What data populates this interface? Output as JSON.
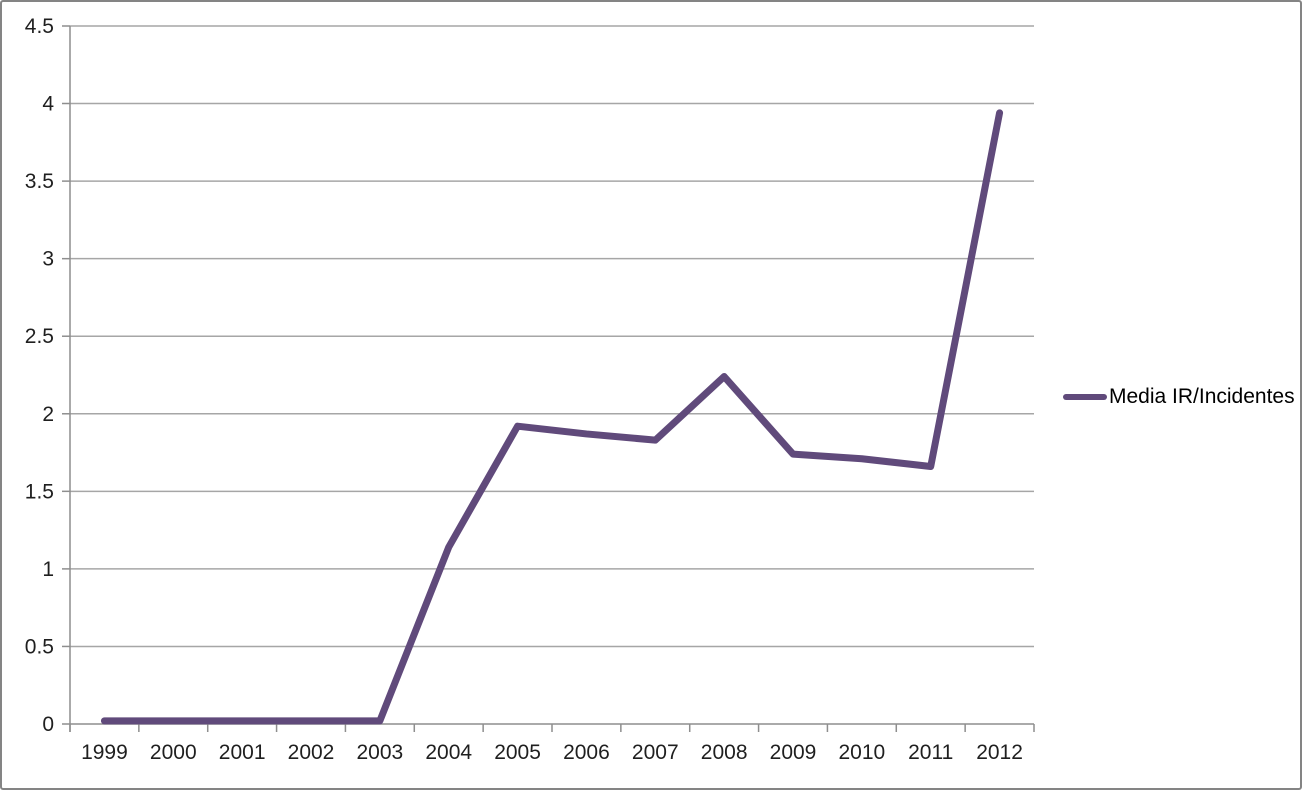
{
  "chart_data": {
    "type": "line",
    "title": "",
    "xlabel": "",
    "ylabel": "",
    "categories": [
      "1999",
      "2000",
      "2001",
      "2002",
      "2003",
      "2004",
      "2005",
      "2006",
      "2007",
      "2008",
      "2009",
      "2010",
      "2011",
      "2012"
    ],
    "series": [
      {
        "name": "Media IR/Incidentes",
        "color": "#604A7B",
        "values": [
          0.02,
          0.02,
          0.02,
          0.02,
          0.02,
          1.14,
          1.92,
          1.87,
          1.83,
          2.24,
          1.74,
          1.71,
          1.66,
          3.94
        ]
      }
    ],
    "ylim": [
      0,
      4.5
    ],
    "ytick_step": 0.5,
    "yticks": [
      "0",
      "0.5",
      "1",
      "1.5",
      "2",
      "2.5",
      "3",
      "3.5",
      "4",
      "4.5"
    ],
    "grid": true,
    "legend_position": "right"
  },
  "colors": {
    "grid": "#A6A6A6",
    "axis": "#8E8E8E",
    "text": "#1F1F1F",
    "border": "#848484",
    "background": "#FFFFFF"
  }
}
